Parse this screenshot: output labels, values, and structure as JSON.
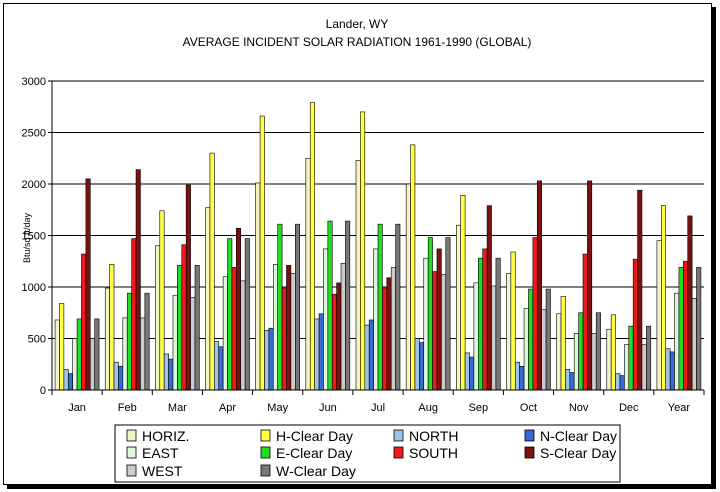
{
  "chart_data": {
    "type": "bar",
    "title": "Lander, WY",
    "subtitle": "AVERAGE INCIDENT SOLAR RADIATION 1961-1990 (GLOBAL)",
    "xlabel": "",
    "ylabel": "Btu/sq ft/day",
    "ylim": [
      0,
      3000
    ],
    "yticks": [
      0,
      500,
      1000,
      1500,
      2000,
      2500,
      3000
    ],
    "grid": true,
    "legend": "bottom",
    "categories": [
      "Jan",
      "Feb",
      "Mar",
      "Apr",
      "May",
      "Jun",
      "Jul",
      "Aug",
      "Sep",
      "Oct",
      "Nov",
      "Dec",
      "Year"
    ],
    "series": [
      {
        "name": "HORIZ.",
        "color": "#f3f3c4",
        "values": [
          680,
          990,
          1400,
          1770,
          2010,
          2250,
          2230,
          2000,
          1600,
          1130,
          740,
          590,
          1450
        ]
      },
      {
        "name": "H-Clear Day",
        "color": "#ffff44",
        "values": [
          840,
          1220,
          1740,
          2300,
          2660,
          2790,
          2700,
          2380,
          1890,
          1340,
          910,
          730,
          1790
        ]
      },
      {
        "name": "NORTH",
        "color": "#9fc4ec",
        "values": [
          200,
          270,
          350,
          470,
          580,
          690,
          630,
          500,
          360,
          270,
          200,
          160,
          400
        ]
      },
      {
        "name": "N-Clear Day",
        "color": "#3a6ad6",
        "values": [
          160,
          230,
          300,
          420,
          600,
          740,
          680,
          460,
          320,
          230,
          170,
          140,
          370
        ]
      },
      {
        "name": "EAST",
        "color": "#ddf7dd",
        "values": [
          500,
          700,
          920,
          1100,
          1220,
          1370,
          1370,
          1280,
          1040,
          790,
          550,
          440,
          940
        ]
      },
      {
        "name": "E-Clear Day",
        "color": "#22dd22",
        "values": [
          690,
          940,
          1210,
          1470,
          1610,
          1640,
          1610,
          1480,
          1280,
          980,
          750,
          620,
          1190
        ]
      },
      {
        "name": "SOUTH",
        "color": "#ee1a1a",
        "values": [
          1320,
          1470,
          1410,
          1190,
          990,
          930,
          990,
          1150,
          1370,
          1480,
          1320,
          1270,
          1250
        ]
      },
      {
        "name": "S-Clear Day",
        "color": "#7a1010",
        "values": [
          2050,
          2140,
          1990,
          1570,
          1210,
          1040,
          1090,
          1370,
          1790,
          2030,
          2030,
          1940,
          1690
        ]
      },
      {
        "name": "WEST",
        "color": "#cccccc",
        "values": [
          500,
          700,
          900,
          1060,
          1130,
          1230,
          1190,
          1120,
          1010,
          780,
          550,
          440,
          890
        ]
      },
      {
        "name": "W-Clear Day",
        "color": "#777777",
        "values": [
          690,
          940,
          1210,
          1470,
          1610,
          1640,
          1610,
          1480,
          1280,
          980,
          750,
          620,
          1190
        ]
      }
    ]
  }
}
